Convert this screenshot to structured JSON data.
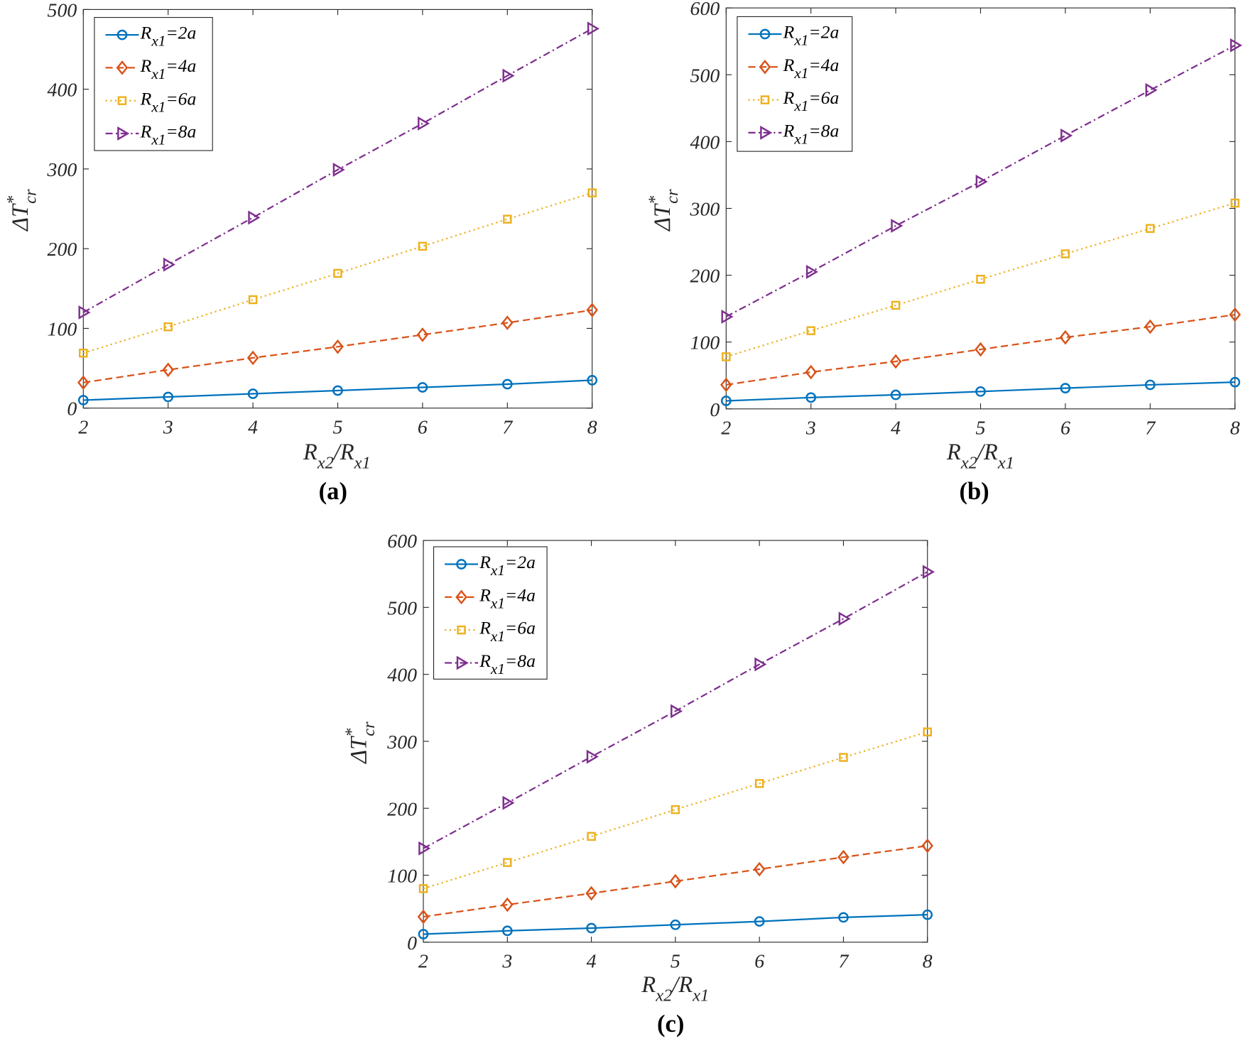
{
  "chart_data": [
    {
      "type": "line",
      "panel_label": "(a)",
      "xlabel": {
        "main": "R",
        "sub1": "x2",
        "slash": "/R",
        "sub2": "x1"
      },
      "ylabel": {
        "main": "ΔT",
        "sup": "*",
        "sub": "cr"
      },
      "x": [
        2,
        3,
        4,
        5,
        6,
        7,
        8
      ],
      "xlim": [
        2,
        8
      ],
      "ylim": [
        0,
        500
      ],
      "xticks": [
        "2",
        "3",
        "4",
        "5",
        "6",
        "7",
        "8"
      ],
      "yticks": [
        "0",
        "100",
        "200",
        "300",
        "400",
        "500"
      ],
      "legend_position": "top-left",
      "series": [
        {
          "name": "R_x1=2a",
          "legend": {
            "R": "R",
            "sub": "x1",
            "eq": "=2a"
          },
          "color": "#0072BD",
          "marker": "circle",
          "line": "solid",
          "values": [
            10,
            14,
            18,
            22,
            26,
            30,
            35
          ]
        },
        {
          "name": "R_x1=4a",
          "legend": {
            "R": "R",
            "sub": "x1",
            "eq": "=4a"
          },
          "color": "#D95319",
          "marker": "diamond",
          "line": "dashed",
          "values": [
            32,
            48,
            63,
            77,
            92,
            107,
            123
          ]
        },
        {
          "name": "R_x1=6a",
          "legend": {
            "R": "R",
            "sub": "x1",
            "eq": "=6a"
          },
          "color": "#EDB120",
          "marker": "square",
          "line": "dotted",
          "values": [
            69,
            102,
            136,
            169,
            203,
            237,
            270
          ]
        },
        {
          "name": "R_x1=8a",
          "legend": {
            "R": "R",
            "sub": "x1",
            "eq": "=8a"
          },
          "color": "#7E2F8E",
          "marker": "triangle-right",
          "line": "dashdot",
          "values": [
            120,
            180,
            239,
            299,
            357,
            417,
            476
          ]
        }
      ]
    },
    {
      "type": "line",
      "panel_label": "(b)",
      "xlabel": {
        "main": "R",
        "sub1": "x2",
        "slash": "/R",
        "sub2": "x1"
      },
      "ylabel": {
        "main": "ΔT",
        "sup": "*",
        "sub": "cr"
      },
      "x": [
        2,
        3,
        4,
        5,
        6,
        7,
        8
      ],
      "xlim": [
        2,
        8
      ],
      "ylim": [
        0,
        600
      ],
      "xticks": [
        "2",
        "3",
        "4",
        "5",
        "6",
        "7",
        "8"
      ],
      "yticks": [
        "0",
        "100",
        "200",
        "300",
        "400",
        "500",
        "600"
      ],
      "legend_position": "top-left",
      "series": [
        {
          "name": "R_x1=2a",
          "legend": {
            "R": "R",
            "sub": "x1",
            "eq": "=2a"
          },
          "color": "#0072BD",
          "marker": "circle",
          "line": "solid",
          "values": [
            12,
            17,
            21,
            26,
            31,
            36,
            40
          ]
        },
        {
          "name": "R_x1=4a",
          "legend": {
            "R": "R",
            "sub": "x1",
            "eq": "=4a"
          },
          "color": "#D95319",
          "marker": "diamond",
          "line": "dashed",
          "values": [
            36,
            55,
            71,
            89,
            107,
            123,
            141
          ]
        },
        {
          "name": "R_x1=6a",
          "legend": {
            "R": "R",
            "sub": "x1",
            "eq": "=6a"
          },
          "color": "#EDB120",
          "marker": "square",
          "line": "dotted",
          "values": [
            78,
            117,
            155,
            194,
            232,
            270,
            308
          ]
        },
        {
          "name": "R_x1=8a",
          "legend": {
            "R": "R",
            "sub": "x1",
            "eq": "=8a"
          },
          "color": "#7E2F8E",
          "marker": "triangle-right",
          "line": "dashdot",
          "values": [
            138,
            205,
            274,
            340,
            409,
            477,
            544
          ]
        }
      ]
    },
    {
      "type": "line",
      "panel_label": "(c)",
      "xlabel": {
        "main": "R",
        "sub1": "x2",
        "slash": "/R",
        "sub2": "x1"
      },
      "ylabel": {
        "main": "ΔT",
        "sup": "*",
        "sub": "cr"
      },
      "x": [
        2,
        3,
        4,
        5,
        6,
        7,
        8
      ],
      "xlim": [
        2,
        8
      ],
      "ylim": [
        0,
        600
      ],
      "xticks": [
        "2",
        "3",
        "4",
        "5",
        "6",
        "7",
        "8"
      ],
      "yticks": [
        "0",
        "100",
        "200",
        "300",
        "400",
        "500",
        "600"
      ],
      "legend_position": "top-left",
      "series": [
        {
          "name": "R_x1=2a",
          "legend": {
            "R": "R",
            "sub": "x1",
            "eq": "=2a"
          },
          "color": "#0072BD",
          "marker": "circle",
          "line": "solid",
          "values": [
            12,
            17,
            21,
            26,
            31,
            37,
            41
          ]
        },
        {
          "name": "R_x1=4a",
          "legend": {
            "R": "R",
            "sub": "x1",
            "eq": "=4a"
          },
          "color": "#D95319",
          "marker": "diamond",
          "line": "dashed",
          "values": [
            38,
            56,
            73,
            91,
            109,
            127,
            144
          ]
        },
        {
          "name": "R_x1=6a",
          "legend": {
            "R": "R",
            "sub": "x1",
            "eq": "=6a"
          },
          "color": "#EDB120",
          "marker": "square",
          "line": "dotted",
          "values": [
            80,
            119,
            158,
            198,
            237,
            276,
            314
          ]
        },
        {
          "name": "R_x1=8a",
          "legend": {
            "R": "R",
            "sub": "x1",
            "eq": "=8a"
          },
          "color": "#7E2F8E",
          "marker": "triangle-right",
          "line": "dashdot",
          "values": [
            140,
            208,
            277,
            345,
            415,
            483,
            553
          ]
        }
      ]
    }
  ]
}
